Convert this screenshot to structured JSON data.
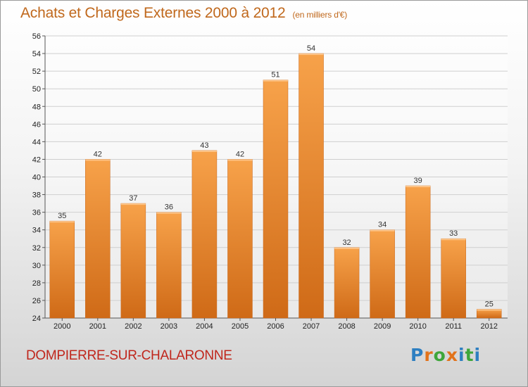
{
  "header": {
    "title": "Achats et Charges Externes 2000 à 2012",
    "subtitle": "(en milliers d'€)"
  },
  "footer": {
    "place": "DOMPIERRE-SUR-CHALARONNE",
    "logo": [
      "P",
      "r",
      "o",
      "x",
      "i",
      "t",
      "i"
    ]
  },
  "colors": {
    "bar_top": "#f7a24a",
    "bar_bottom": "#cf6a17",
    "title": "#c0681c",
    "place": "#c0261c"
  },
  "chart_data": {
    "type": "bar",
    "title": "Achats et Charges Externes 2000 à 2012",
    "subtitle": "(en milliers d'€)",
    "xlabel": "",
    "ylabel": "",
    "categories": [
      "2000",
      "2001",
      "2002",
      "2003",
      "2004",
      "2005",
      "2006",
      "2007",
      "2008",
      "2009",
      "2010",
      "2011",
      "2012"
    ],
    "values": [
      35,
      42,
      37,
      36,
      43,
      42,
      51,
      54,
      32,
      34,
      39,
      33,
      25
    ],
    "ylim": [
      24,
      56
    ],
    "yticks": [
      24,
      26,
      28,
      30,
      32,
      34,
      36,
      38,
      40,
      42,
      44,
      46,
      48,
      50,
      52,
      54,
      56
    ],
    "grid": true,
    "legend": "none"
  }
}
